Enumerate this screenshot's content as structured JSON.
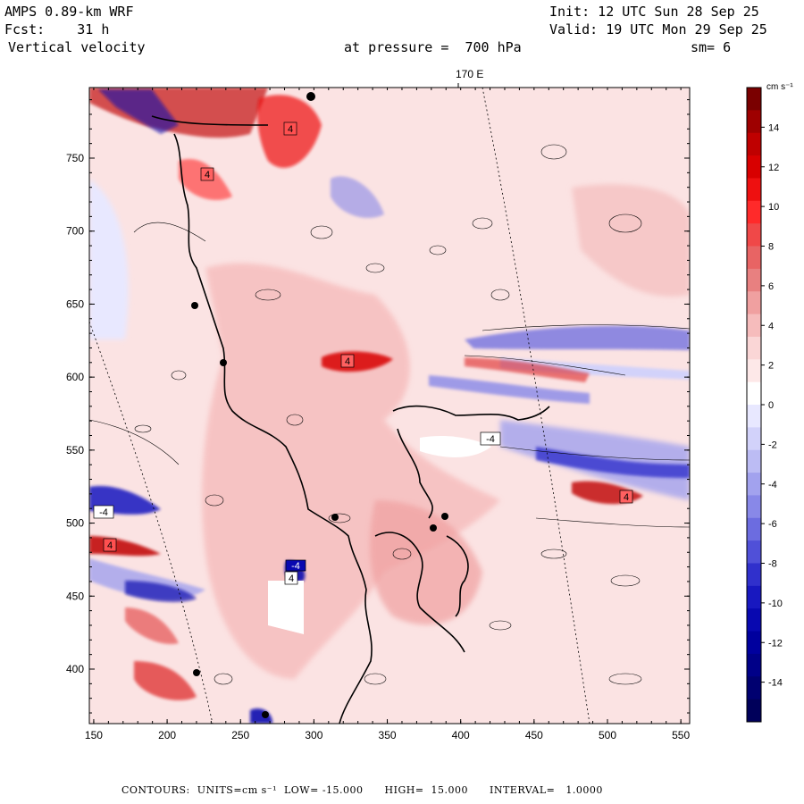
{
  "header": {
    "model": "AMPS 0.89-km WRF",
    "forecast": "Fcst:    31 h",
    "field": "Vertical velocity",
    "pressure": "at pressure =  700 hPa",
    "init": "Init: 12 UTC Sun 28 Sep 25",
    "valid": "Valid: 19 UTC Mon 29 Sep 25",
    "smoothing": "sm= 6"
  },
  "longitude_label": "170 E",
  "colorbar": {
    "units": "cm s⁻¹",
    "ticks": [
      "14",
      "12",
      "10",
      "8",
      "6",
      "4",
      "2",
      "0",
      "-2",
      "-4",
      "-6",
      "-8",
      "-10",
      "-12",
      "-14"
    ],
    "colors": [
      "#7a0000",
      "#9e0000",
      "#bf0000",
      "#d80000",
      "#ee1010",
      "#ff2a2a",
      "#f04848",
      "#e86464",
      "#e88080",
      "#f0a0a0",
      "#f6bcbc",
      "#fad6d6",
      "#fde8e8",
      "#ffffff",
      "#e8e8ff",
      "#d2d2fa",
      "#bcbcf4",
      "#a2a2ee",
      "#8888e8",
      "#6c6ce0",
      "#5050d8",
      "#3030cc",
      "#1818c0",
      "#0808b0",
      "#00009e",
      "#000088",
      "#000070",
      "#00005a"
    ]
  },
  "axes": {
    "x_ticks": [
      "150",
      "200",
      "250",
      "300",
      "350",
      "400",
      "450",
      "500",
      "550"
    ],
    "y_ticks": [
      "750",
      "700",
      "650",
      "600",
      "550",
      "500",
      "450",
      "400"
    ]
  },
  "highlows": [
    "4",
    "4",
    "4",
    "4",
    "-4",
    "4",
    "-4",
    "4",
    "-4"
  ],
  "footer": {
    "text": "CONTOURS:  UNITS=cm s⁻¹  LOW= -15.000      HIGH=  15.000      INTERVAL=   1.0000"
  }
}
